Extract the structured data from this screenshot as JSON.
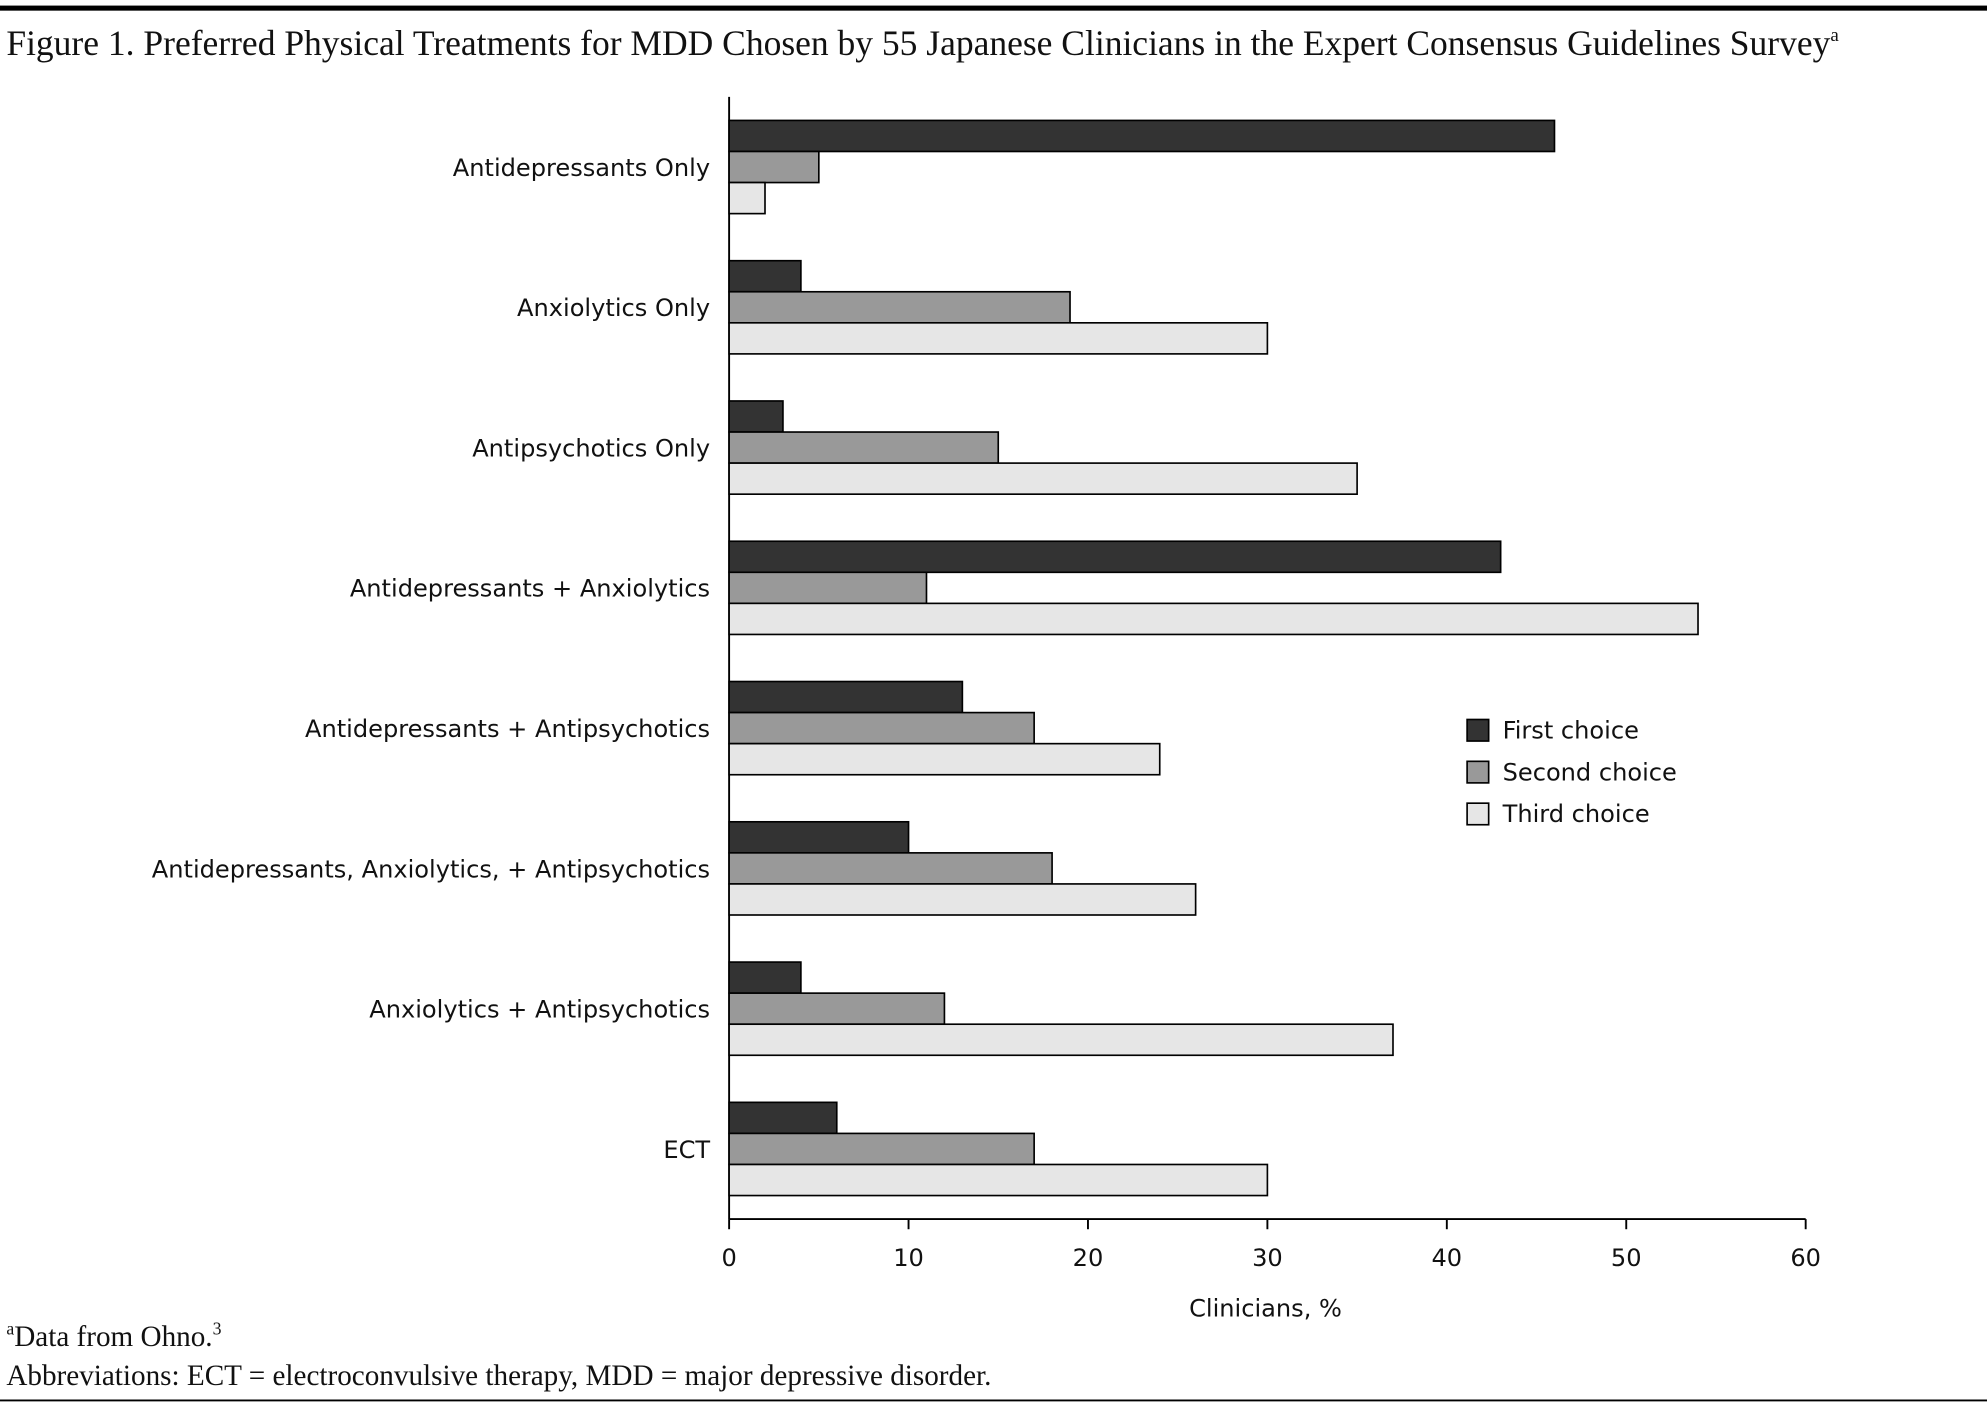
{
  "chart_data": {
    "type": "barh",
    "title": "Figure 1. Preferred Physical Treatments for MDD Chosen by 55 Japanese Clinicians in the Expert Consensus Guidelines Survey",
    "title_note": "a",
    "categories": [
      "Antidepressants Only",
      "Anxiolytics Only",
      "Antipsychotics Only",
      "Antidepressants + Anxiolytics",
      "Antidepressants + Antipsychotics",
      "Antidepressants, Anxiolytics, + Antipsychotics",
      "Anxiolytics + Antipsychotics",
      "ECT"
    ],
    "series": [
      {
        "name": "First choice",
        "color": "#333333",
        "values": [
          46,
          4,
          3,
          43,
          13,
          10,
          4,
          6
        ]
      },
      {
        "name": "Second choice",
        "color": "#999999",
        "values": [
          5,
          19,
          15,
          11,
          17,
          18,
          12,
          17
        ]
      },
      {
        "name": "Third choice",
        "color": "#e6e6e6",
        "values": [
          2,
          30,
          35,
          54,
          24,
          26,
          37,
          30
        ]
      }
    ],
    "xlabel": "Clinicians, %",
    "xlim": [
      0,
      60
    ],
    "xticks": [
      0,
      10,
      20,
      30,
      40,
      50,
      60
    ],
    "legend": "right"
  },
  "notes": [
    {
      "marker": "a",
      "text": "Data from Ohno.",
      "ref": "3"
    },
    {
      "text": "Abbreviations: ECT = electroconvulsive therapy, MDD = major depressive disorder."
    }
  ]
}
